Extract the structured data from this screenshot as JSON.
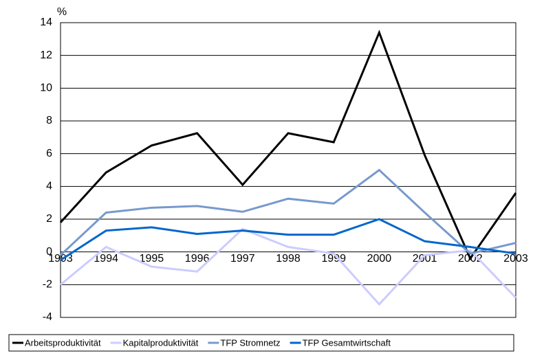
{
  "chart_data": {
    "type": "line",
    "y_label": "%",
    "categories": [
      "1993",
      "1994",
      "1995",
      "1996",
      "1997",
      "1998",
      "1999",
      "2000",
      "2001",
      "2002",
      "2003"
    ],
    "series": [
      {
        "name": "Arbeitsproduktivität",
        "color": "#000000",
        "values": [
          1.8,
          4.85,
          6.5,
          7.25,
          4.1,
          7.25,
          6.7,
          13.4,
          5.9,
          -0.4,
          3.6
        ]
      },
      {
        "name": "Kapitalproduktivität",
        "color": "#ccccff",
        "values": [
          -2.0,
          0.3,
          -0.9,
          -1.2,
          1.4,
          0.3,
          -0.1,
          -3.2,
          -0.2,
          0.1,
          -2.8
        ]
      },
      {
        "name": "TFP Stromnetz",
        "color": "#7799cc",
        "values": [
          -0.2,
          2.4,
          2.7,
          2.8,
          2.45,
          3.25,
          2.95,
          5.0,
          2.4,
          -0.1,
          0.55
        ]
      },
      {
        "name": "TFP Gesamtwirtschaft",
        "color": "#0066cc",
        "values": [
          -0.5,
          1.3,
          1.5,
          1.1,
          1.3,
          1.05,
          1.05,
          2.0,
          0.65,
          0.3,
          -0.1
        ]
      }
    ],
    "ylim": [
      -4,
      14
    ],
    "yticks": [
      -4,
      -2,
      0,
      2,
      4,
      6,
      8,
      10,
      12,
      14
    ],
    "grid": true
  }
}
